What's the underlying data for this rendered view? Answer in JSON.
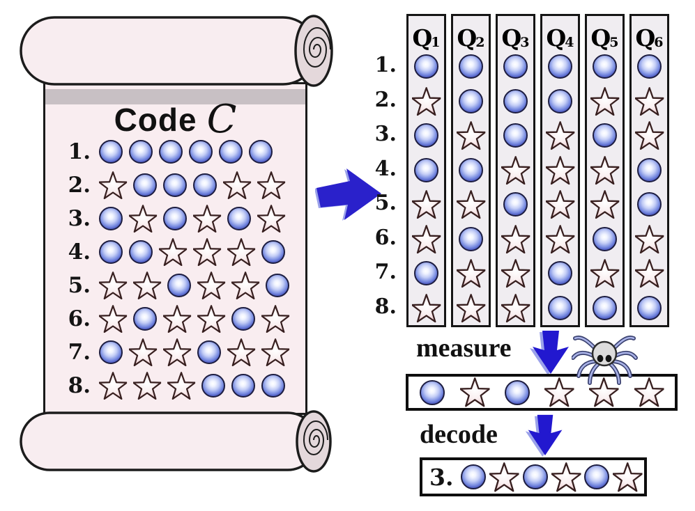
{
  "scroll": {
    "title": "Code",
    "title_script": "C",
    "rows": [
      {
        "label": "1.",
        "symbols": [
          "circle",
          "circle",
          "circle",
          "circle",
          "circle",
          "circle"
        ]
      },
      {
        "label": "2.",
        "symbols": [
          "star",
          "circle",
          "circle",
          "circle",
          "star",
          "star"
        ]
      },
      {
        "label": "3.",
        "symbols": [
          "circle",
          "star",
          "circle",
          "star",
          "circle",
          "star"
        ]
      },
      {
        "label": "4.",
        "symbols": [
          "circle",
          "circle",
          "star",
          "star",
          "star",
          "circle"
        ]
      },
      {
        "label": "5.",
        "symbols": [
          "star",
          "star",
          "circle",
          "star",
          "star",
          "circle"
        ]
      },
      {
        "label": "6.",
        "symbols": [
          "star",
          "circle",
          "star",
          "star",
          "circle",
          "star"
        ]
      },
      {
        "label": "7.",
        "symbols": [
          "circle",
          "star",
          "star",
          "circle",
          "star",
          "star"
        ]
      },
      {
        "label": "8.",
        "symbols": [
          "star",
          "star",
          "star",
          "circle",
          "circle",
          "circle"
        ]
      }
    ]
  },
  "qubits": {
    "row_labels": [
      "1.",
      "2.",
      "3.",
      "4.",
      "5.",
      "6.",
      "7.",
      "8."
    ],
    "columns": [
      {
        "label": "Q",
        "sub": "1",
        "symbols": [
          "circle",
          "star",
          "circle",
          "circle",
          "star",
          "star",
          "circle",
          "star"
        ]
      },
      {
        "label": "Q",
        "sub": "2",
        "symbols": [
          "circle",
          "circle",
          "star",
          "circle",
          "star",
          "circle",
          "star",
          "star"
        ]
      },
      {
        "label": "Q",
        "sub": "3",
        "symbols": [
          "circle",
          "circle",
          "circle",
          "star",
          "circle",
          "star",
          "star",
          "star"
        ]
      },
      {
        "label": "Q",
        "sub": "4",
        "symbols": [
          "circle",
          "circle",
          "star",
          "star",
          "star",
          "star",
          "circle",
          "circle"
        ]
      },
      {
        "label": "Q",
        "sub": "5",
        "symbols": [
          "circle",
          "star",
          "circle",
          "star",
          "star",
          "circle",
          "star",
          "circle"
        ]
      },
      {
        "label": "Q",
        "sub": "6",
        "symbols": [
          "circle",
          "star",
          "star",
          "circle",
          "circle",
          "star",
          "star",
          "circle"
        ]
      }
    ]
  },
  "measure": {
    "label": "measure",
    "symbols": [
      "circle",
      "star",
      "circle",
      "star",
      "star",
      "star"
    ]
  },
  "decode": {
    "label": "decode",
    "result_label": "3.",
    "symbols": [
      "circle",
      "star",
      "circle",
      "star",
      "circle",
      "star"
    ]
  },
  "icons": {
    "encode_arrow": "right-arrow",
    "measure_arrow": "down-arrow",
    "decode_arrow": "down-arrow",
    "noise": "spider"
  },
  "colors": {
    "scroll_paper": "#f9edf0",
    "roll_end": "#e4d8db",
    "shadow_band": "#c8c0c4",
    "strip_bg": "#f0edf1",
    "arrow_blue": "#2a21cb",
    "circle_blue": "#3f4cba",
    "star_pink": "#e2b3ba",
    "outline": "#1a1a1a"
  }
}
